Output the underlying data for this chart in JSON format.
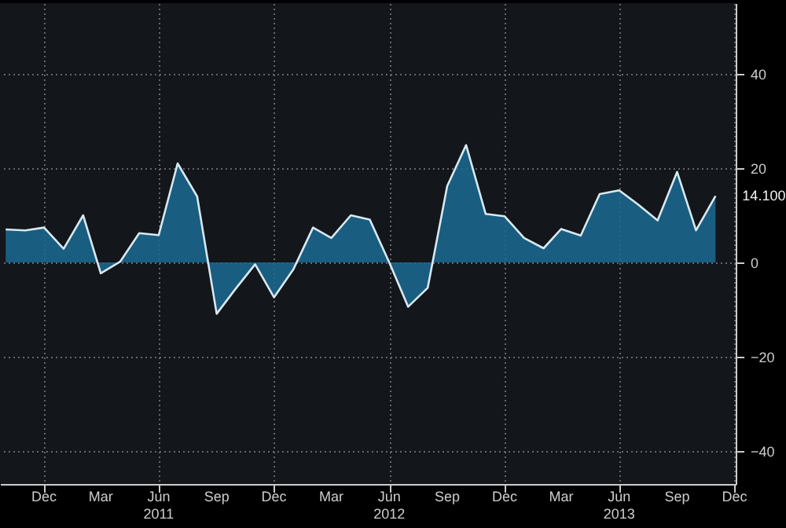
{
  "chart_data": {
    "type": "area",
    "x": [
      "2010-10",
      "2010-11",
      "2010-12",
      "2011-01",
      "2011-02",
      "2011-03",
      "2011-04",
      "2011-05",
      "2011-06",
      "2011-07",
      "2011-08",
      "2011-09",
      "2011-10",
      "2011-11",
      "2011-12",
      "2012-01",
      "2012-02",
      "2012-03",
      "2012-04",
      "2012-05",
      "2012-06",
      "2012-07",
      "2012-08",
      "2012-09",
      "2012-10",
      "2012-11",
      "2012-12",
      "2013-01",
      "2013-02",
      "2013-03",
      "2013-04",
      "2013-05",
      "2013-06",
      "2013-07",
      "2013-08",
      "2013-09",
      "2013-10",
      "2013-11"
    ],
    "series": [
      {
        "color": "#1b6a92",
        "values": [
          7.0,
          6.8,
          7.4,
          2.9,
          10,
          -2.3,
          0.2,
          6.2,
          5.8,
          21,
          14,
          -10.9,
          -5.6,
          -0.4,
          -7.4,
          -1.4,
          7.4,
          5.2,
          10,
          9.1,
          0,
          -9.4,
          -5.4,
          16.2,
          24.9,
          10.3,
          9.8,
          5.2,
          3.0,
          7.1,
          5.7,
          14.5,
          15.3,
          12.3,
          8.9,
          19.2,
          6.8,
          14.1
        ]
      }
    ],
    "xlim": [
      "2010-09-22",
      "2013-12-03"
    ],
    "xticks": [
      {
        "value": "2010-12",
        "label": "Dec"
      },
      {
        "value": "2011-03",
        "label": "Mar"
      },
      {
        "value": "2011-06",
        "label": "Jun\n2011"
      },
      {
        "value": "2011-09",
        "label": "Sep"
      },
      {
        "value": "2011-12",
        "label": "Dec"
      },
      {
        "value": "2012-03",
        "label": "Mar"
      },
      {
        "value": "2012-06",
        "label": "Jun\n2012"
      },
      {
        "value": "2012-09",
        "label": "Sep"
      },
      {
        "value": "2012-12",
        "label": "Dec"
      },
      {
        "value": "2013-03",
        "label": "Mar"
      },
      {
        "value": "2013-06",
        "label": "Jun\n2013"
      },
      {
        "value": "2013-09",
        "label": "Sep"
      },
      {
        "value": "2013-12",
        "label": "Dec"
      }
    ],
    "ylim": [
      -47,
      55
    ],
    "yticks": [
      -40,
      -20,
      0,
      20,
      40
    ],
    "grid": true,
    "annotations": [
      {
        "text": "14.100",
        "x": "2013-11",
        "y": 14.1
      }
    ]
  }
}
